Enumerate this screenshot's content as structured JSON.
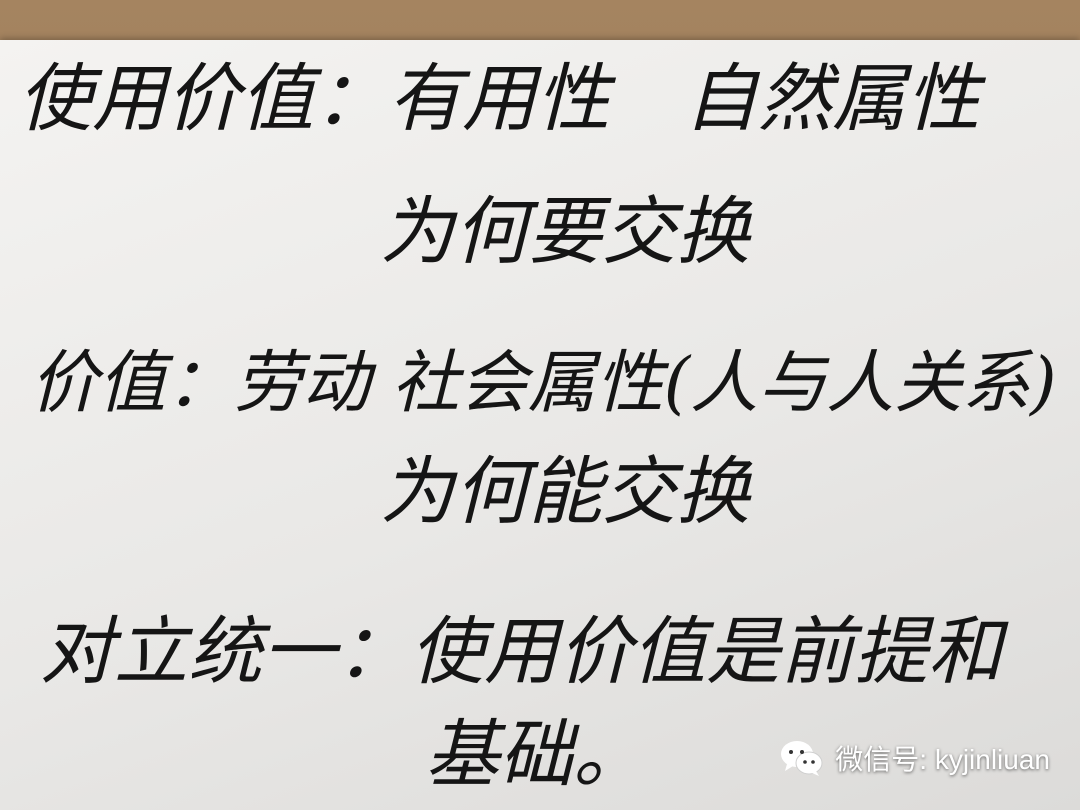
{
  "note_lines": [
    "使用价值：有用性　自然属性",
    "为何要交换",
    "价值：劳动 社会属性(人与人关系)",
    "为何能交换",
    "对立统一：使用价值是前提和",
    "基础。"
  ],
  "watermark": {
    "text": "微信号: kyjinliuan",
    "icon": "wechat-icon"
  },
  "colors": {
    "paper": "#eeedeb",
    "ink": "#151515",
    "table": "#9a7a55"
  }
}
